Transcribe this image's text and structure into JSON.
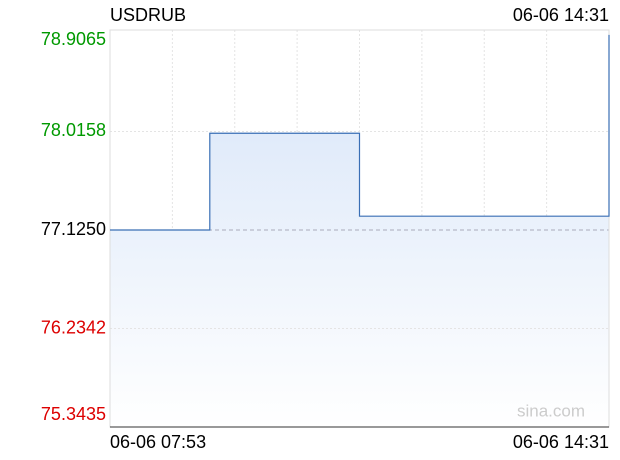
{
  "chart_data": {
    "type": "line",
    "title": "USDRUB",
    "updated": "06-06 14:31",
    "watermark": "sina.com",
    "categories": [
      "06-06 07:53",
      null,
      null,
      null,
      null,
      null,
      null,
      null,
      null,
      null,
      null,
      null,
      null,
      null,
      null,
      null,
      null,
      null,
      null,
      null,
      "06-06 14:31"
    ],
    "series": [
      {
        "name": "USDRUB",
        "color": "#3a6fb5",
        "values": [
          77.125,
          77.125,
          77.125,
          77.125,
          78.0,
          78.0,
          78.0,
          78.0,
          78.0,
          78.0,
          77.25,
          77.25,
          77.25,
          77.25,
          77.25,
          77.25,
          77.25,
          77.25,
          77.25,
          77.25,
          78.89
        ]
      }
    ],
    "ylim": [
      75.3435,
      78.9065
    ],
    "yticks": [
      75.3435,
      76.2342,
      {
        "value": 77.125,
        "label": "77.1250"
      },
      78.0158,
      78.9065
    ],
    "baseline": 77.125,
    "up_color": "#009900",
    "down_color": "#dd0000",
    "base_color": "#000000",
    "grid": true,
    "x_grid_divisions": 8,
    "step": true
  }
}
